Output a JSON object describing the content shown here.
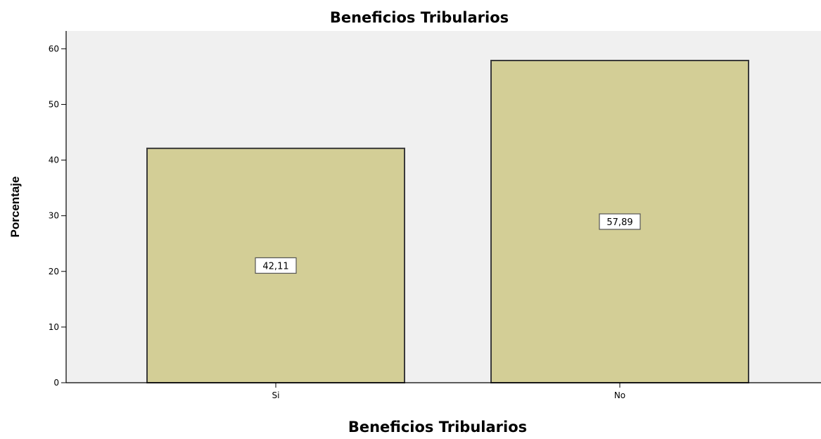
{
  "chart_data": {
    "type": "bar",
    "title": "Beneficios Tribularios",
    "xlabel": "Beneficios Tribularios",
    "ylabel": "Porcentaje",
    "categories": [
      "Si",
      "No"
    ],
    "values": [
      42.11,
      57.89
    ],
    "value_labels": [
      "42,11",
      "57,89"
    ],
    "y_ticks": [
      0,
      10,
      20,
      30,
      40,
      50,
      60
    ],
    "ylim": [
      0,
      63.2
    ],
    "grid": false,
    "legend": "none",
    "colors": {
      "plot_background": "#f0f0f0",
      "bar_fill": "#d3ce96",
      "bar_stroke": "#3a3a3a",
      "axis": "#000000"
    }
  }
}
